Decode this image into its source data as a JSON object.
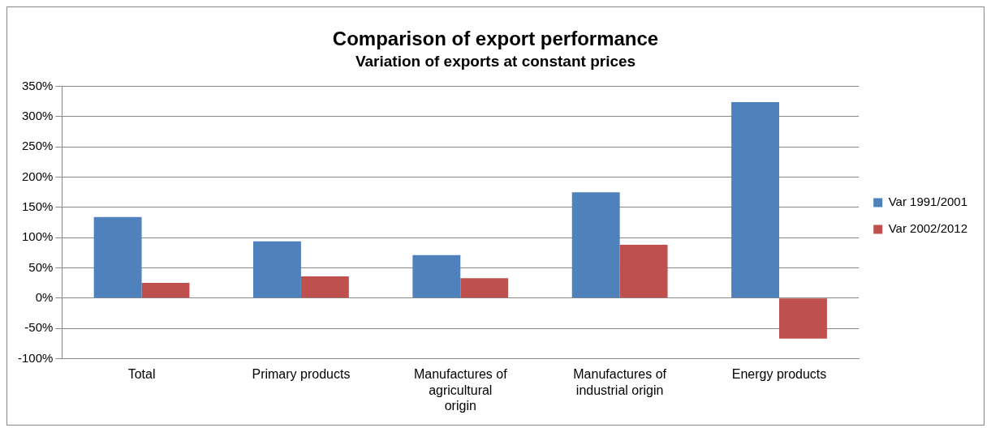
{
  "chart_data": {
    "type": "bar",
    "title": "Comparison of export performance",
    "subtitle": "Variation of exports at constant prices",
    "categories": [
      "Total",
      "Primary products",
      "Manufactures of agricultural origin",
      "Manufactures of industrial origin",
      "Energy products"
    ],
    "series": [
      {
        "name": "Var 1991/2001",
        "color": "#4f81bd",
        "values": [
          134,
          94,
          71,
          175,
          324
        ]
      },
      {
        "name": "Var 2002/2012",
        "color": "#c0504d",
        "values": [
          25,
          36,
          33,
          88,
          -67
        ]
      }
    ],
    "ylim": [
      -100,
      350
    ],
    "yticks": [
      {
        "value": -100,
        "label": "-100%"
      },
      {
        "value": -50,
        "label": "-50%"
      },
      {
        "value": 0,
        "label": "0%"
      },
      {
        "value": 50,
        "label": "50%"
      },
      {
        "value": 100,
        "label": "100%"
      },
      {
        "value": 150,
        "label": "150%"
      },
      {
        "value": 200,
        "label": "200%"
      },
      {
        "value": 250,
        "label": "250%"
      },
      {
        "value": 300,
        "label": "300%"
      },
      {
        "value": 350,
        "label": "350%"
      }
    ],
    "grid": "y",
    "legend": "right"
  }
}
